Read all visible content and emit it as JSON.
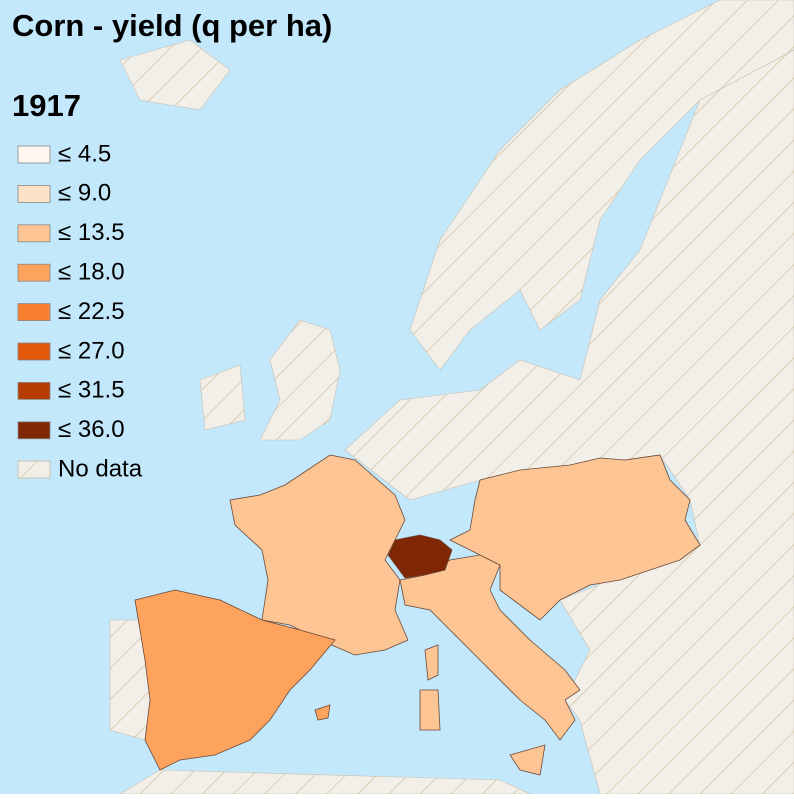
{
  "title": "Corn - yield (q per ha)",
  "year": "1917",
  "legend": [
    {
      "label": "≤ 4.5",
      "color": "#fef6ef"
    },
    {
      "label": "≤ 9.0",
      "color": "#fee2c8"
    },
    {
      "label": "≤ 13.5",
      "color": "#fdc593"
    },
    {
      "label": "≤ 18.0",
      "color": "#fda35d"
    },
    {
      "label": "≤ 22.5",
      "color": "#f9802e"
    },
    {
      "label": "≤ 27.0",
      "color": "#e4580c"
    },
    {
      "label": "≤ 31.5",
      "color": "#b63c04"
    },
    {
      "label": "≤ 36.0",
      "color": "#7f2704"
    }
  ],
  "no_data_label": "No data"
}
